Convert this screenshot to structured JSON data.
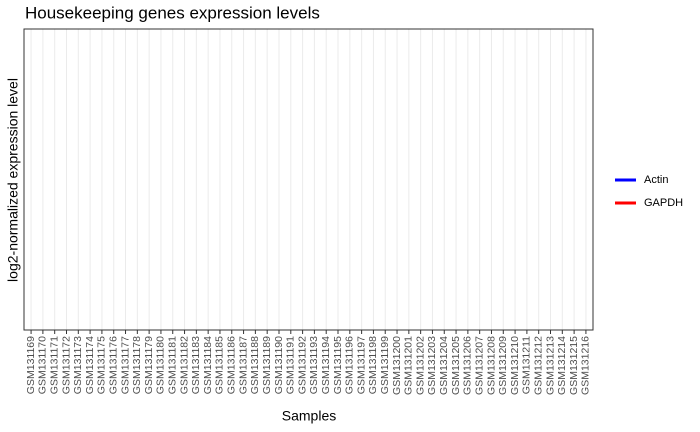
{
  "chart_data": {
    "type": "line",
    "title": "Housekeeping genes expression levels",
    "xlabel": "Samples",
    "ylabel": "log2-normalized expression level",
    "categories": [
      "GSM131169",
      "GSM131170",
      "GSM131171",
      "GSM131172",
      "GSM131173",
      "GSM131174",
      "GSM131175",
      "GSM131176",
      "GSM131177",
      "GSM131178",
      "GSM131179",
      "GSM131180",
      "GSM131181",
      "GSM131182",
      "GSM131183",
      "GSM131184",
      "GSM131185",
      "GSM131186",
      "GSM131187",
      "GSM131188",
      "GSM131189",
      "GSM131190",
      "GSM131191",
      "GSM131192",
      "GSM131193",
      "GSM131194",
      "GSM131195",
      "GSM131196",
      "GSM131197",
      "GSM131198",
      "GSM131199",
      "GSM131200",
      "GSM131201",
      "GSM131202",
      "GSM131203",
      "GSM131204",
      "GSM131205",
      "GSM131206",
      "GSM131207",
      "GSM131208",
      "GSM131209",
      "GSM131210",
      "GSM131211",
      "GSM131212",
      "GSM131213",
      "GSM131214",
      "GSM131215",
      "GSM131216"
    ],
    "series": [
      {
        "name": "Actin",
        "color": "#0000ff",
        "values": [
          null,
          null,
          null,
          null,
          null,
          null,
          null,
          null,
          null,
          null,
          null,
          null,
          null,
          null,
          null,
          null,
          null,
          null,
          null,
          null,
          null,
          null,
          null,
          null,
          null,
          null,
          null,
          null,
          null,
          null,
          null,
          null,
          null,
          null,
          null,
          null,
          null,
          null,
          null,
          null,
          null,
          null,
          null,
          null,
          null,
          null,
          null,
          null
        ]
      },
      {
        "name": "GAPDH",
        "color": "#ff0000",
        "values": [
          null,
          null,
          null,
          null,
          null,
          null,
          null,
          null,
          null,
          null,
          null,
          null,
          null,
          null,
          null,
          null,
          null,
          null,
          null,
          null,
          null,
          null,
          null,
          null,
          null,
          null,
          null,
          null,
          null,
          null,
          null,
          null,
          null,
          null,
          null,
          null,
          null,
          null,
          null,
          null,
          null,
          null,
          null,
          null,
          null,
          null,
          null,
          null
        ]
      }
    ],
    "grid": true,
    "legend": "right"
  }
}
